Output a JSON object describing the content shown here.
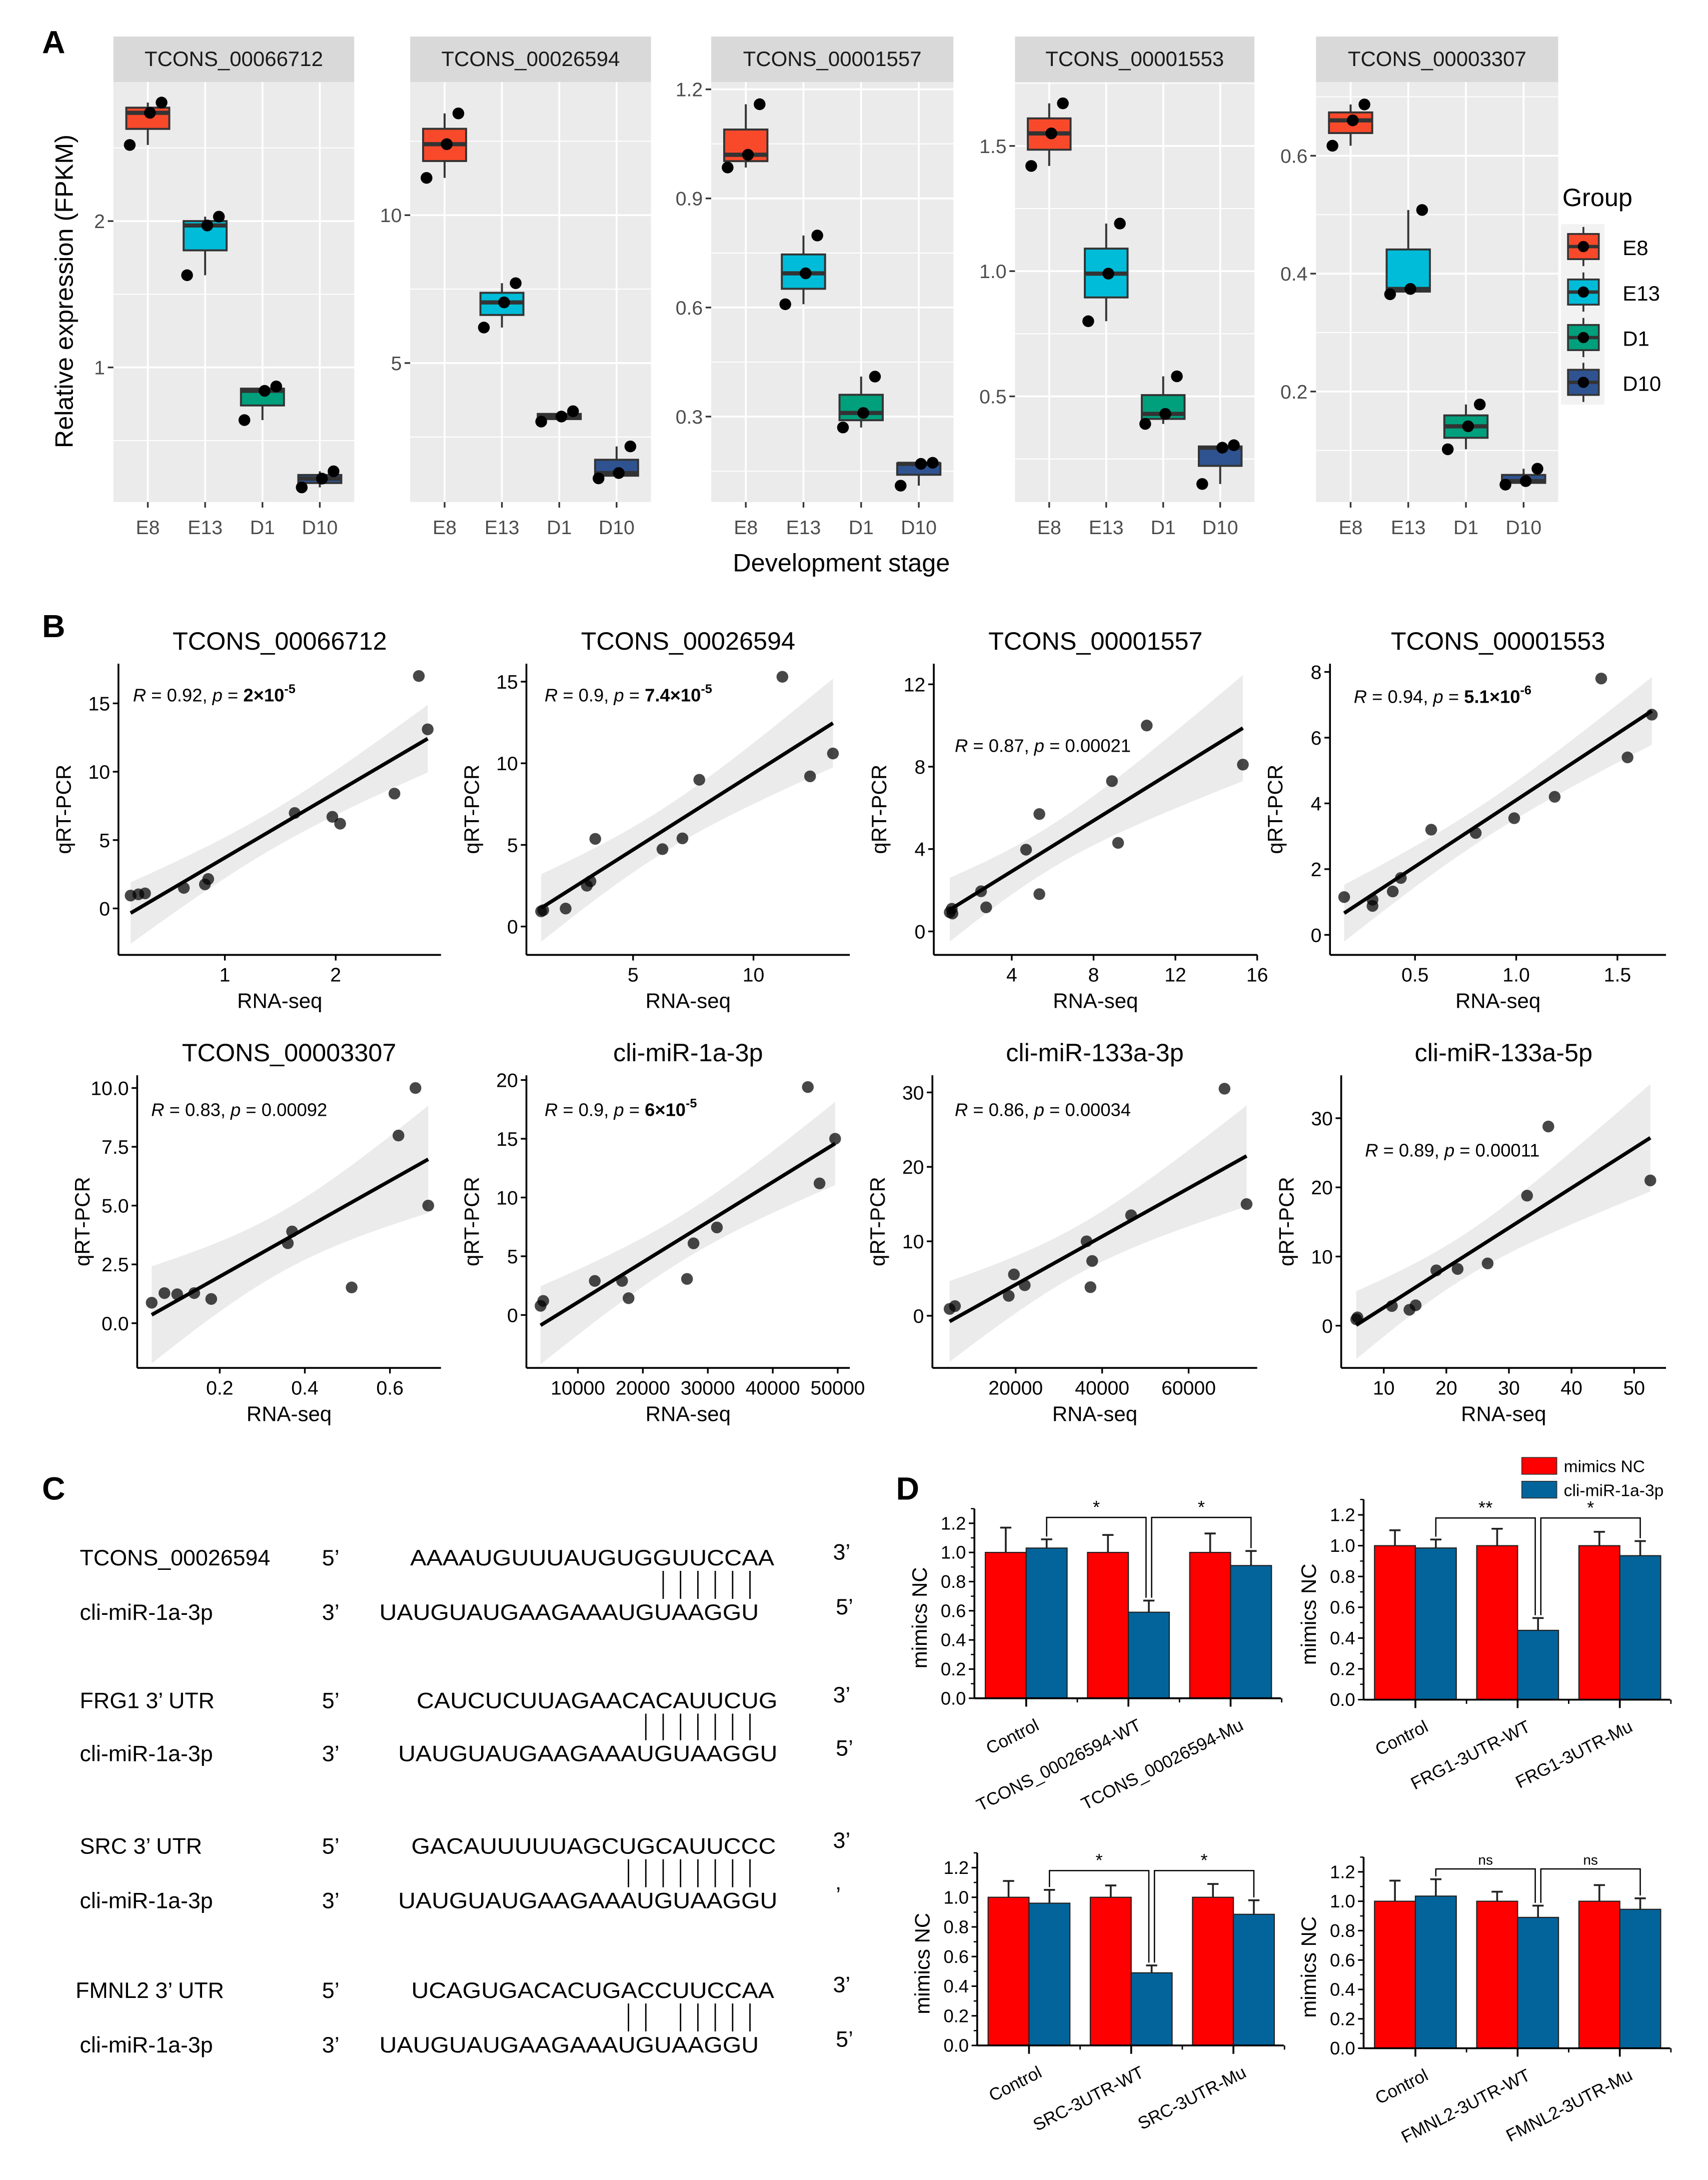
{
  "panel_labels": {
    "a": "A",
    "b": "B",
    "c": "C",
    "d": "D"
  },
  "chart_data": [
    {
      "panel": "A",
      "type": "box",
      "xlabel": "Development stage",
      "ylabel": "Relative expression (FPKM)",
      "categories": [
        "E8",
        "E13",
        "D1",
        "D10"
      ],
      "grid": true,
      "legend": {
        "title": "Group",
        "placement": "right",
        "entries": [
          {
            "label": "E8",
            "color": "#F8492B"
          },
          {
            "label": "E13",
            "color": "#00BCD8"
          },
          {
            "label": "D1",
            "color": "#00A07D"
          },
          {
            "label": "D10",
            "color": "#2F5390"
          }
        ]
      },
      "facets": [
        {
          "title": "TCONS_00066712",
          "ylim": [
            0.08,
            2.95
          ],
          "yticks": [
            "1",
            "2"
          ],
          "points": [
            [
              2.52,
              2.74,
              2.81
            ],
            [
              1.63,
              1.97,
              2.03
            ],
            [
              0.64,
              0.84,
              0.87
            ],
            [
              0.18,
              0.24,
              0.29
            ]
          ]
        },
        {
          "title": "TCONS_00026594",
          "ylim": [
            0.3,
            14.5
          ],
          "yticks": [
            "5",
            "10"
          ],
          "points": [
            [
              11.26,
              12.4,
              13.44
            ],
            [
              6.2,
              7.05,
              7.7
            ],
            [
              3.02,
              3.19,
              3.37
            ],
            [
              1.1,
              1.28,
              2.18
            ]
          ]
        },
        {
          "title": "TCONS_00001557",
          "ylim": [
            0.065,
            1.22
          ],
          "yticks": [
            "0.3",
            "0.6",
            "0.9",
            "1.2"
          ],
          "points": [
            [
              0.985,
              1.02,
              1.159
            ],
            [
              0.609,
              0.694,
              0.798
            ],
            [
              0.27,
              0.31,
              0.41
            ],
            [
              0.11,
              0.17,
              0.173
            ]
          ]
        },
        {
          "title": "TCONS_00001553",
          "ylim": [
            0.078,
            1.755
          ],
          "yticks": [
            "0.5",
            "1.0",
            "1.5"
          ],
          "points": [
            [
              1.42,
              1.55,
              1.67
            ],
            [
              0.8,
              0.99,
              1.19
            ],
            [
              0.39,
              0.43,
              0.58
            ],
            [
              0.15,
              0.295,
              0.305
            ]
          ]
        },
        {
          "title": "TCONS_00003307",
          "ylim": [
            0.0125,
            0.725
          ],
          "yticks": [
            "0.2",
            "0.4",
            "0.6"
          ],
          "points": [
            [
              0.617,
              0.66,
              0.687
            ],
            [
              0.365,
              0.374,
              0.508
            ],
            [
              0.102,
              0.141,
              0.178
            ],
            [
              0.042,
              0.048,
              0.069
            ]
          ]
        }
      ]
    },
    {
      "panel": "B",
      "type": "scatter",
      "xlabel": "RNA-seq",
      "ylabel": "qRT-PCR",
      "grid": false,
      "fit": "linear regression with 95% confidence band",
      "plots": [
        {
          "title": "TCONS_00066712",
          "xlim": [
            0.04,
            2.95
          ],
          "ylim": [
            -3.4,
            17.9
          ],
          "xticks": [
            "1",
            "2"
          ],
          "yticks": [
            "0",
            "5",
            "10",
            "15"
          ],
          "annotation": {
            "r_label": "R",
            "r_value": " = 0.92, ",
            "p_label": "p",
            "p_eq": " = ",
            "p_value": "2×10",
            "p_exp": "-5",
            "p_bold": true
          },
          "x": [
            0.15,
            0.22,
            0.28,
            0.63,
            0.82,
            0.85,
            1.63,
            1.97,
            2.04,
            2.53,
            2.75,
            2.83
          ],
          "y": [
            0.94,
            1.03,
            1.1,
            1.5,
            1.76,
            2.15,
            6.98,
            6.7,
            6.2,
            8.4,
            17.0,
            13.1
          ]
        },
        {
          "title": "TCONS_00026594",
          "xlim": [
            0.57,
            14.0
          ],
          "ylim": [
            -1.74,
            16.1
          ],
          "xticks": [
            "5",
            "10"
          ],
          "yticks": [
            "0",
            "5",
            "10",
            "15"
          ],
          "annotation": {
            "r_label": "R",
            "r_value": " = 0.9, ",
            "p_label": "p",
            "p_eq": " = ",
            "p_value": "7.4×10",
            "p_exp": "-5",
            "p_bold": true
          },
          "x": [
            1.18,
            1.27,
            2.2,
            3.08,
            3.23,
            3.43,
            6.22,
            7.05,
            7.75,
            11.2,
            12.35,
            13.3
          ],
          "y": [
            0.93,
            1.0,
            1.1,
            2.5,
            2.77,
            5.37,
            4.74,
            5.4,
            8.99,
            15.3,
            9.2,
            10.6
          ]
        },
        {
          "title": "TCONS_00001557",
          "xlim": [
            0.19,
            16.0
          ],
          "ylim": [
            -1.14,
            13.0
          ],
          "xticks": [
            "4",
            "8",
            "12",
            "16"
          ],
          "yticks": [
            "0",
            "4",
            "8",
            "12"
          ],
          "annotation": {
            "r_label": "R",
            "r_value": " = 0.87, ",
            "p_label": "p",
            "p_eq": " = ",
            "p_value": "0.00021",
            "p_exp": "",
            "p_bold": false
          },
          "x": [
            0.97,
            1.07,
            1.1,
            2.5,
            2.75,
            4.7,
            5.35,
            5.35,
            8.9,
            9.2,
            10.6,
            15.3
          ],
          "y": [
            0.93,
            1.1,
            0.87,
            1.95,
            1.17,
            3.97,
            5.7,
            1.81,
            7.3,
            4.3,
            10.0,
            8.1
          ]
        },
        {
          "title": "TCONS_00001553",
          "xlim": [
            0.08,
            1.74
          ],
          "ylim": [
            -0.61,
            8.25
          ],
          "xticks": [
            "0.5",
            "1.0",
            "1.5"
          ],
          "yticks": [
            "0",
            "2",
            "4",
            "6",
            "8"
          ],
          "annotation": {
            "r_label": "R",
            "r_value": " = 0.94, ",
            "p_label": "p",
            "p_eq": " = ",
            "p_value": "5.1×10",
            "p_exp": "-6",
            "p_bold": true
          },
          "x": [
            0.15,
            0.29,
            0.29,
            0.39,
            0.43,
            0.58,
            0.8,
            0.99,
            1.19,
            1.42,
            1.55,
            1.67
          ],
          "y": [
            1.15,
            0.88,
            1.07,
            1.32,
            1.73,
            3.2,
            3.1,
            3.55,
            4.2,
            7.8,
            5.4,
            6.7
          ]
        },
        {
          "title": "TCONS_00003307",
          "xlim": [
            0.006,
            0.72
          ],
          "ylim": [
            -1.9,
            10.54
          ],
          "xticks": [
            "0.2",
            "0.4",
            "0.6"
          ],
          "yticks": [
            "0.0",
            "2.5",
            "5.0",
            "7.5",
            "10.0"
          ],
          "annotation": {
            "r_label": "R",
            "r_value": " = 0.83, ",
            "p_label": "p",
            "p_eq": " = ",
            "p_value": "0.00092",
            "p_exp": "",
            "p_bold": false
          },
          "x": [
            0.04,
            0.07,
            0.1,
            0.14,
            0.18,
            0.36,
            0.37,
            0.51,
            0.62,
            0.66,
            0.69
          ],
          "y": [
            0.87,
            1.28,
            1.23,
            1.28,
            1.03,
            3.4,
            3.9,
            1.52,
            7.98,
            10.0,
            5.0
          ]
        },
        {
          "title": "cli-miR-1a-3p",
          "xlim": [
            2070,
            51860
          ],
          "ylim": [
            -4.5,
            20.4
          ],
          "xticks": [
            "10000",
            "20000",
            "30000",
            "40000",
            "50000"
          ],
          "yticks": [
            "0",
            "5",
            "10",
            "15",
            "20"
          ],
          "annotation": {
            "r_label": "R",
            "r_value": " = 0.9, ",
            "p_label": "p",
            "p_eq": " = ",
            "p_value": "6×10",
            "p_exp": "-5",
            "p_bold": true
          },
          "x": [
            4250,
            4660,
            12600,
            16800,
            17800,
            26800,
            27800,
            31400,
            45400,
            47200,
            49600
          ],
          "y": [
            0.78,
            1.2,
            2.9,
            2.9,
            1.43,
            3.07,
            6.1,
            7.45,
            19.4,
            11.2,
            15.0
          ]
        },
        {
          "title": "cli-miR-133a-3p",
          "xlim": [
            745,
            75860
          ],
          "ylim": [
            -7.0,
            32.3
          ],
          "xticks": [
            "20000",
            "40000",
            "60000"
          ],
          "yticks": [
            "0",
            "10",
            "20",
            "30"
          ],
          "annotation": {
            "r_label": "R",
            "r_value": " = 0.86, ",
            "p_label": "p",
            "p_eq": " = ",
            "p_value": "0.00034",
            "p_exp": "",
            "p_bold": false
          },
          "x": [
            4720,
            5960,
            18400,
            19600,
            22100,
            36400,
            37300,
            37700,
            46700,
            68300,
            73400
          ],
          "y": [
            0.92,
            1.3,
            2.67,
            5.55,
            4.1,
            10.0,
            3.84,
            7.36,
            13.5,
            30.5,
            15.0
          ]
        },
        {
          "title": "cli-miR-133a-5p",
          "xlim": [
            3.2,
            55.1
          ],
          "ylim": [
            -6.1,
            36.2
          ],
          "xticks": [
            "10",
            "20",
            "30",
            "40",
            "50"
          ],
          "yticks": [
            "0",
            "10",
            "20",
            "30"
          ],
          "annotation": {
            "r_label": "R",
            "r_value": " = 0.89, ",
            "p_label": "p",
            "p_eq": " = ",
            "p_value": "0.00011",
            "p_exp": "",
            "p_bold": false
          },
          "x": [
            5.6,
            5.8,
            11.3,
            14.1,
            15.1,
            18.4,
            21.8,
            26.6,
            32.9,
            36.3,
            52.6
          ],
          "y": [
            0.92,
            1.2,
            2.84,
            2.3,
            2.95,
            8.0,
            8.2,
            9.0,
            18.8,
            28.8,
            21.0
          ]
        }
      ]
    },
    {
      "panel": "D",
      "type": "bar",
      "ylabel": "mimics NC",
      "ylim": [
        0,
        1.3
      ],
      "yticks": [
        "0.0",
        "0.2",
        "0.4",
        "0.6",
        "0.8",
        "1.0",
        "1.2"
      ],
      "legend": {
        "placement": "top-right",
        "entries": [
          {
            "name": "mimics NC",
            "color": "#FF0000"
          },
          {
            "name": "cli-miR-1a-3p",
            "color": "#03649B"
          }
        ]
      },
      "charts": [
        {
          "categories": [
            "Control",
            "TCONS_00026594-WT",
            "TCONS_00026594-Mu"
          ],
          "series": [
            {
              "name": "mimics NC",
              "values": [
                1.0,
                1.0,
                1.0
              ],
              "errors": [
                0.17,
                0.12,
                0.13
              ]
            },
            {
              "name": "cli-miR-1a-3p",
              "values": [
                1.03,
                0.59,
                0.91
              ],
              "errors": [
                0.06,
                0.08,
                0.1
              ]
            }
          ],
          "significance": [
            {
              "from": 0,
              "to": 1,
              "label": "*"
            },
            {
              "from": 1,
              "to": 2,
              "label": "*"
            }
          ]
        },
        {
          "categories": [
            "Control",
            "FRG1-3UTR-WT",
            "FRG1-3UTR-Mu"
          ],
          "series": [
            {
              "name": "mimics NC",
              "values": [
                1.0,
                1.0,
                1.0
              ],
              "errors": [
                0.1,
                0.11,
                0.09
              ]
            },
            {
              "name": "cli-miR-1a-3p",
              "values": [
                0.985,
                0.45,
                0.935
              ],
              "errors": [
                0.055,
                0.08,
                0.095
              ]
            }
          ],
          "significance": [
            {
              "from": 0,
              "to": 1,
              "label": "**"
            },
            {
              "from": 1,
              "to": 2,
              "label": "*"
            }
          ]
        },
        {
          "categories": [
            "Control",
            "SRC-3UTR-WT",
            "SRC-3UTR-Mu"
          ],
          "series": [
            {
              "name": "mimics NC",
              "values": [
                1.0,
                1.0,
                1.0
              ],
              "errors": [
                0.11,
                0.08,
                0.09
              ]
            },
            {
              "name": "cli-miR-1a-3p",
              "values": [
                0.96,
                0.49,
                0.885
              ],
              "errors": [
                0.09,
                0.05,
                0.095
              ]
            }
          ],
          "significance": [
            {
              "from": 0,
              "to": 1,
              "label": "*"
            },
            {
              "from": 1,
              "to": 2,
              "label": "*"
            }
          ]
        },
        {
          "categories": [
            "Control",
            "FMNL2-3UTR-WT",
            "FMNL2-3UTR-Mu"
          ],
          "series": [
            {
              "name": "mimics NC",
              "values": [
                1.0,
                1.0,
                1.0
              ],
              "errors": [
                0.14,
                0.065,
                0.11
              ]
            },
            {
              "name": "cli-miR-1a-3p",
              "values": [
                1.035,
                0.89,
                0.945
              ],
              "errors": [
                0.115,
                0.08,
                0.075
              ]
            }
          ],
          "significance": [
            {
              "from": 0,
              "to": 1,
              "label": "ns"
            },
            {
              "from": 1,
              "to": 2,
              "label": "ns"
            }
          ]
        }
      ]
    }
  ],
  "panel_c": {
    "pairs": [
      {
        "target": {
          "label": "TCONS_00026594",
          "end_left": "5’",
          "seq": "AAAAUGUUUAUGUGGUUCCAA",
          "end_right": "3’"
        },
        "mirna": {
          "label": "cli-miR-1a-3p",
          "end_left": "3’",
          "seq": "UAUGUAUGAAGAAAUGUAAGGU",
          "end_right": "5’"
        },
        "pairing": "||||||"
      },
      {
        "target": {
          "label": "FRG1 3’ UTR",
          "end_left": "5’",
          "seq": "CAUCUCUUAGAACACAUUCUG",
          "end_right": "3’"
        },
        "mirna": {
          "label": "cli-miR-1a-3p",
          "end_left": "3’",
          "seq": "UAUGUAUGAAGAAAUGUAAGGU",
          "end_right": "5’"
        },
        "pairing": "|||||||"
      },
      {
        "target": {
          "label": "SRC 3’ UTR",
          "end_left": "5’",
          "seq": "GACAUUUUUAGCUGCAUUCCC",
          "end_right": "3’"
        },
        "mirna": {
          "label": "cli-miR-1a-3p",
          "end_left": "3’",
          "seq": "UAUGUAUGAAGAAAUGUAAGGU",
          "end_right": "’"
        },
        "pairing": "||||||||"
      },
      {
        "target": {
          "label": "FMNL2 3’ UTR",
          "end_left": "5’",
          "seq": "UCAGUGACACUGACCUUCCAA",
          "end_right": "3’"
        },
        "mirna": {
          "label": "cli-miR-1a-3p",
          "end_left": "3’",
          "seq": "UAUGUAUGAAGAAAUGUAAGGU",
          "end_right": "5’"
        },
        "pairing": "|| |||||"
      }
    ]
  }
}
